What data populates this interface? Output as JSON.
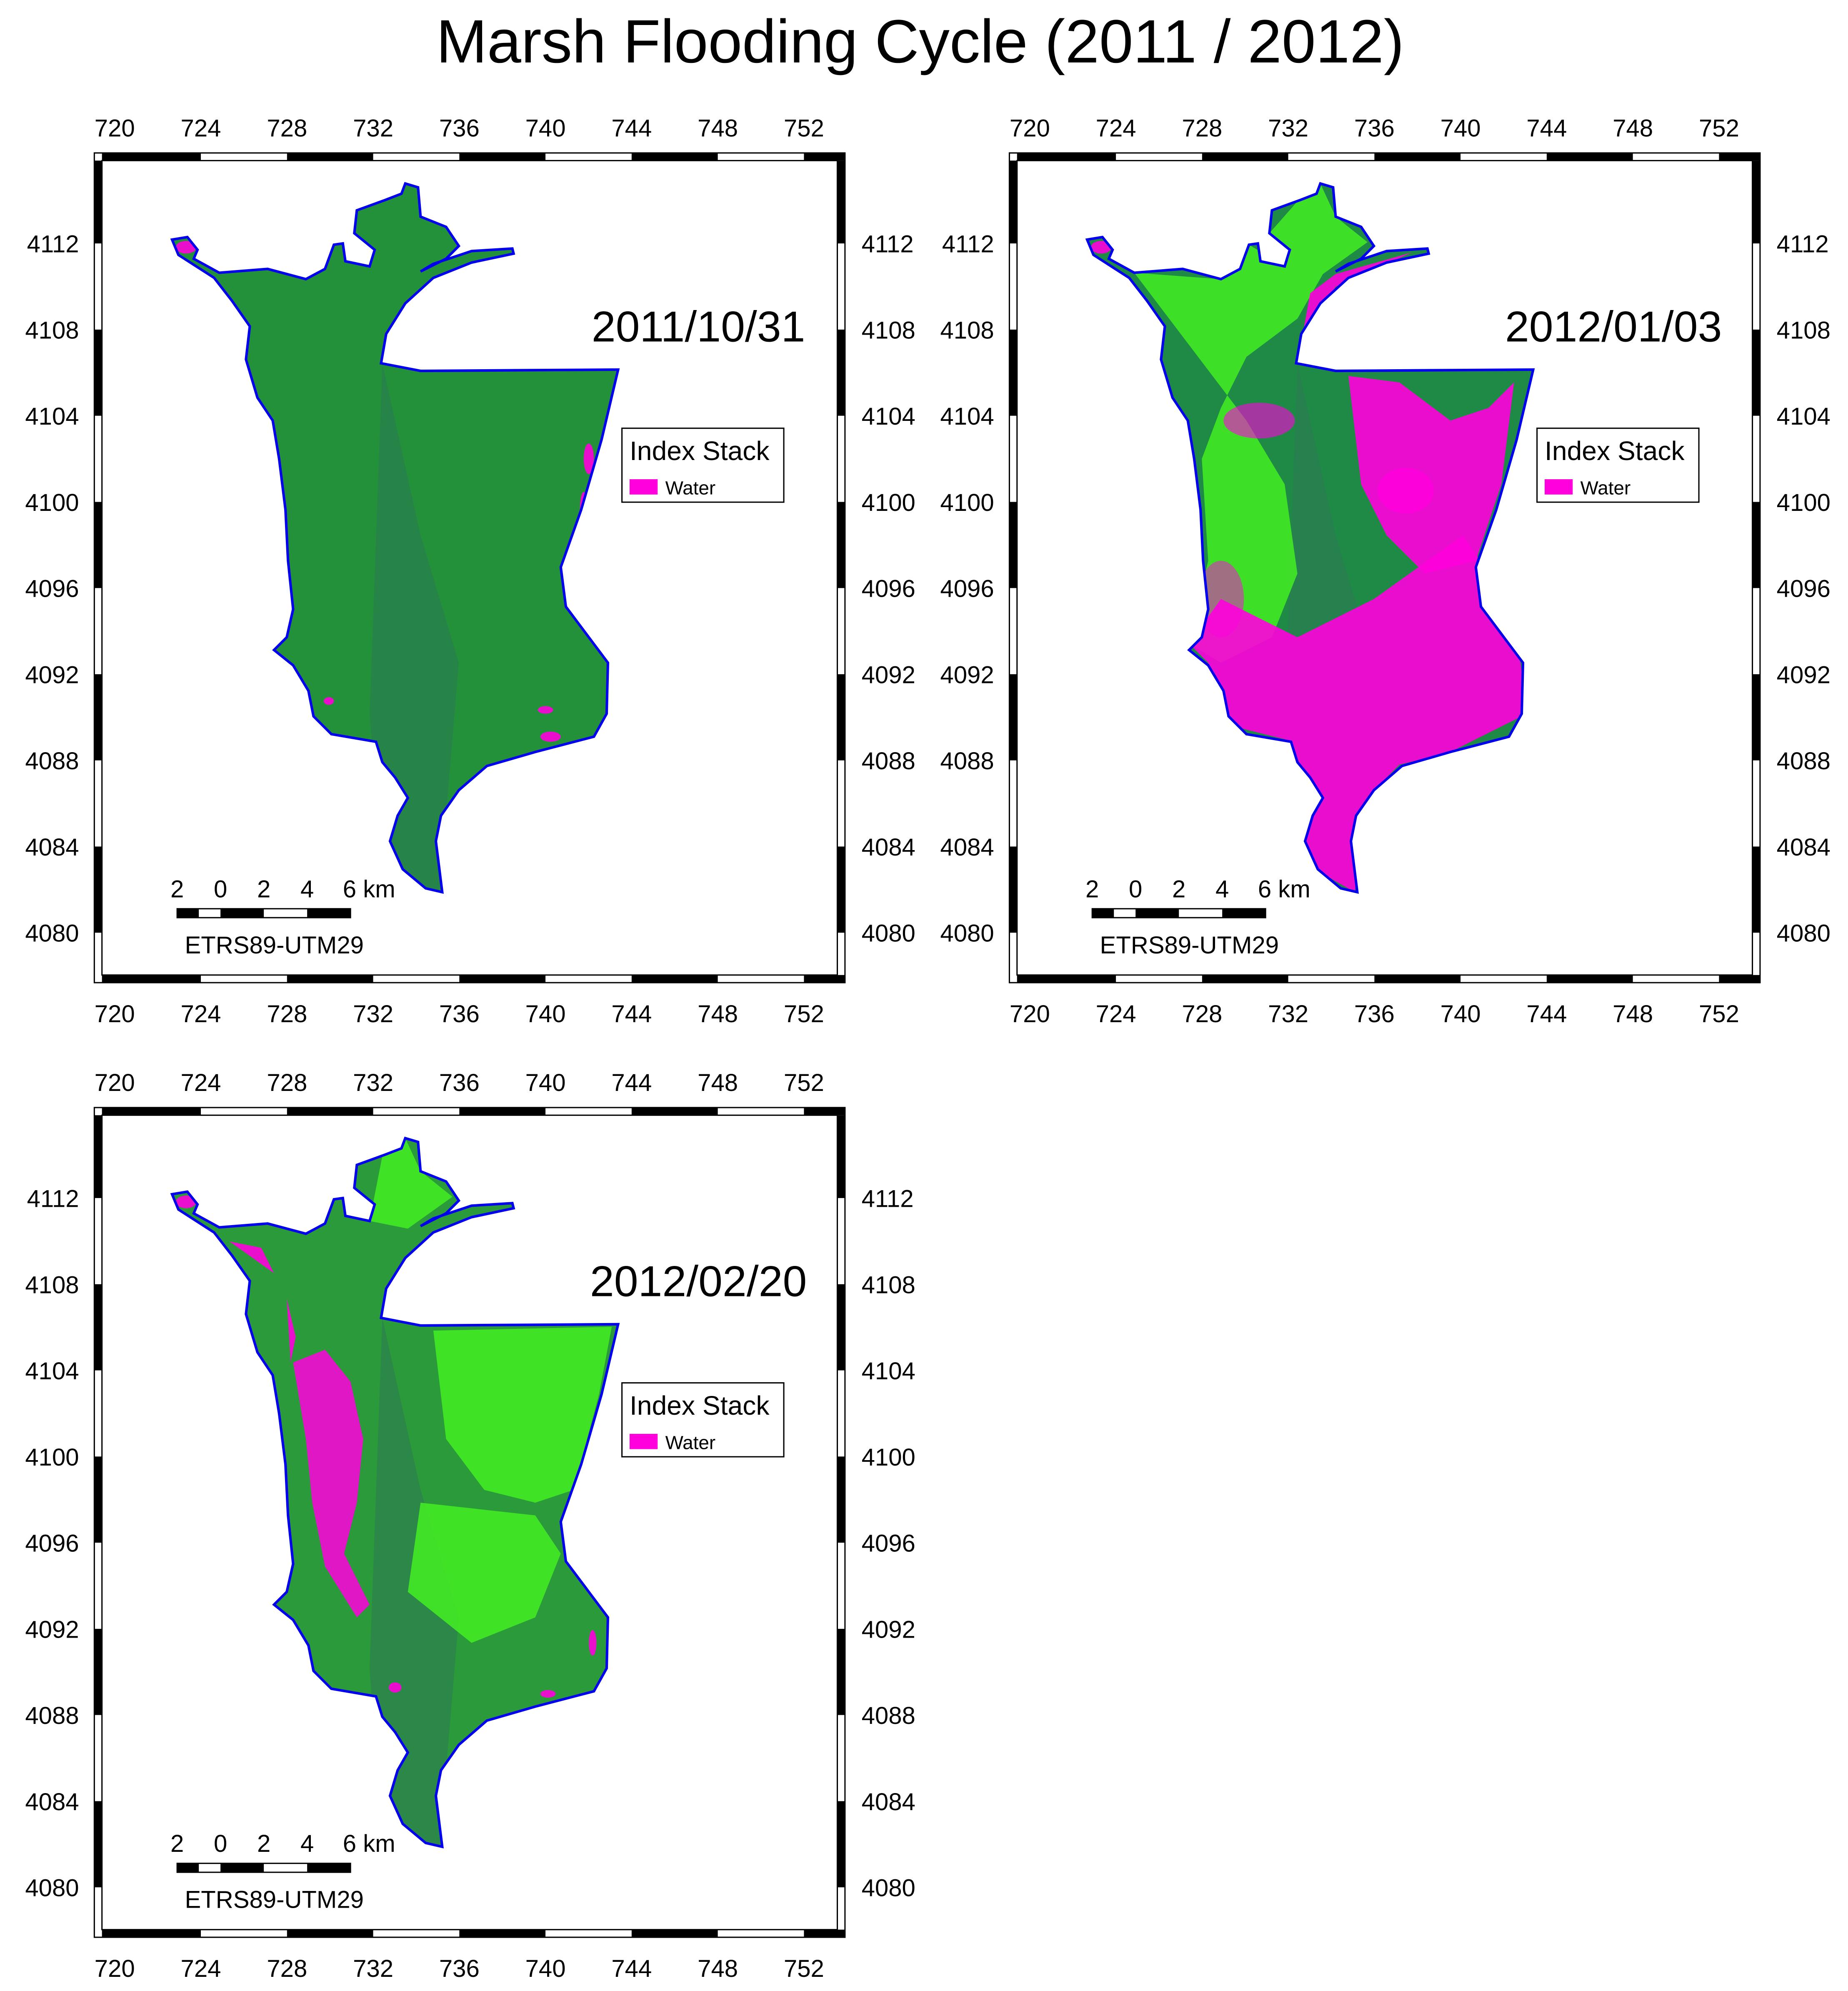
{
  "title": "Marsh Flooding Cycle (2011 / 2012)",
  "x_ticks": [
    "720",
    "724",
    "728",
    "732",
    "736",
    "740",
    "744",
    "748",
    "752"
  ],
  "y_ticks": [
    "4112",
    "4108",
    "4104",
    "4100",
    "4096",
    "4092",
    "4088",
    "4084",
    "4080"
  ],
  "panels": [
    {
      "date": "2011/10/31",
      "flood_level": "low"
    },
    {
      "date": "2012/01/03",
      "flood_level": "high"
    },
    {
      "date": "2012/02/20",
      "flood_level": "medium"
    }
  ],
  "legend": {
    "title": "Index Stack",
    "items": [
      {
        "label": "Water",
        "color": "#ff00dd"
      }
    ]
  },
  "scale_bar": {
    "labels": [
      "2",
      "0",
      "2",
      "4",
      "6 km"
    ]
  },
  "crs": "ETRS89-UTM29",
  "colors": {
    "boundary": "#0000ee",
    "vegetation": "#1f9a3a",
    "bright_vegetation": "#44ee22",
    "water": "#ff00dd"
  }
}
